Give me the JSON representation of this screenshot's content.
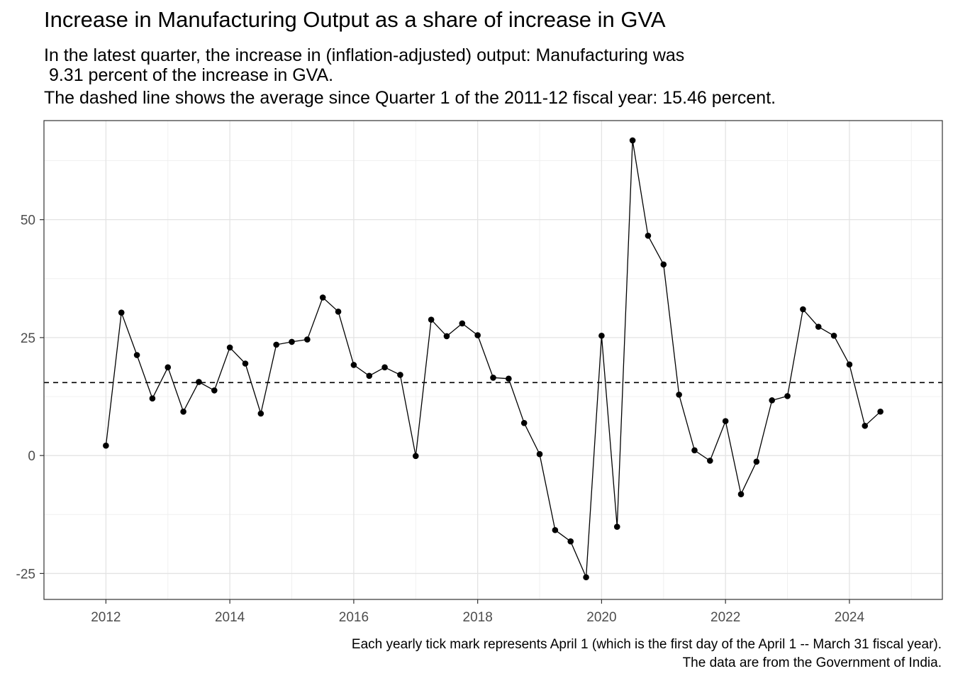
{
  "title": "Increase in Manufacturing Output as a share of increase in GVA",
  "subtitle_lines": [
    "In the latest quarter, the increase in (inflation-adjusted) output: Manufacturing was",
    " 9.31 percent of the increase in GVA.",
    "The dashed line shows the average since Quarter 1 of the 2011-12 fiscal year: 15.46 percent."
  ],
  "caption_lines": [
    "Each yearly tick mark represents April 1 (which is the first day of the April 1 -- March 31 fiscal year).",
    "The data are from the Government of India."
  ],
  "chart_data": {
    "type": "line",
    "title": "Increase in Manufacturing Output as a share of increase in GVA",
    "xlabel": "",
    "ylabel": "",
    "x_ticks": [
      "2012",
      "2014",
      "2016",
      "2018",
      "2020",
      "2022",
      "2024"
    ],
    "y_ticks": [
      "-25",
      "0",
      "25",
      "50"
    ],
    "xlim": [
      2011.0,
      2025.5
    ],
    "ylim": [
      -30.5,
      71
    ],
    "grid": true,
    "reference_line": {
      "value": 15.46,
      "style": "dashed"
    },
    "series": [
      {
        "x": [
          2012.0,
          2012.25,
          2012.5,
          2012.75,
          2013.0,
          2013.25,
          2013.5,
          2013.75,
          2014.0,
          2014.25,
          2014.5,
          2014.75,
          2015.0,
          2015.25,
          2015.5,
          2015.75,
          2016.0,
          2016.25,
          2016.5,
          2016.75,
          2017.0,
          2017.25,
          2017.5,
          2017.75,
          2018.0,
          2018.25,
          2018.5,
          2018.75,
          2019.0,
          2019.25,
          2019.5,
          2019.75,
          2020.0,
          2020.25,
          2020.5,
          2020.75,
          2021.0,
          2021.25,
          2021.5,
          2021.75,
          2022.0,
          2022.25,
          2022.5,
          2022.75,
          2023.0,
          2023.25,
          2023.5,
          2023.75,
          2024.0,
          2024.25,
          2024.5
        ],
        "y": [
          2.1,
          30.3,
          21.3,
          12.1,
          18.7,
          9.3,
          15.6,
          13.8,
          22.9,
          19.5,
          8.9,
          23.5,
          24.1,
          24.6,
          33.5,
          30.5,
          19.2,
          16.9,
          18.7,
          17.1,
          -0.1,
          28.8,
          25.3,
          28.0,
          25.5,
          16.5,
          16.3,
          6.9,
          0.3,
          -15.8,
          -18.2,
          -25.8,
          25.4,
          -15.1,
          66.8,
          46.6,
          40.5,
          12.9,
          1.1,
          -1.1,
          7.3,
          -8.2,
          -1.3,
          11.7,
          12.6,
          31.0,
          27.3,
          25.4,
          19.3,
          6.3,
          9.31
        ]
      }
    ]
  }
}
